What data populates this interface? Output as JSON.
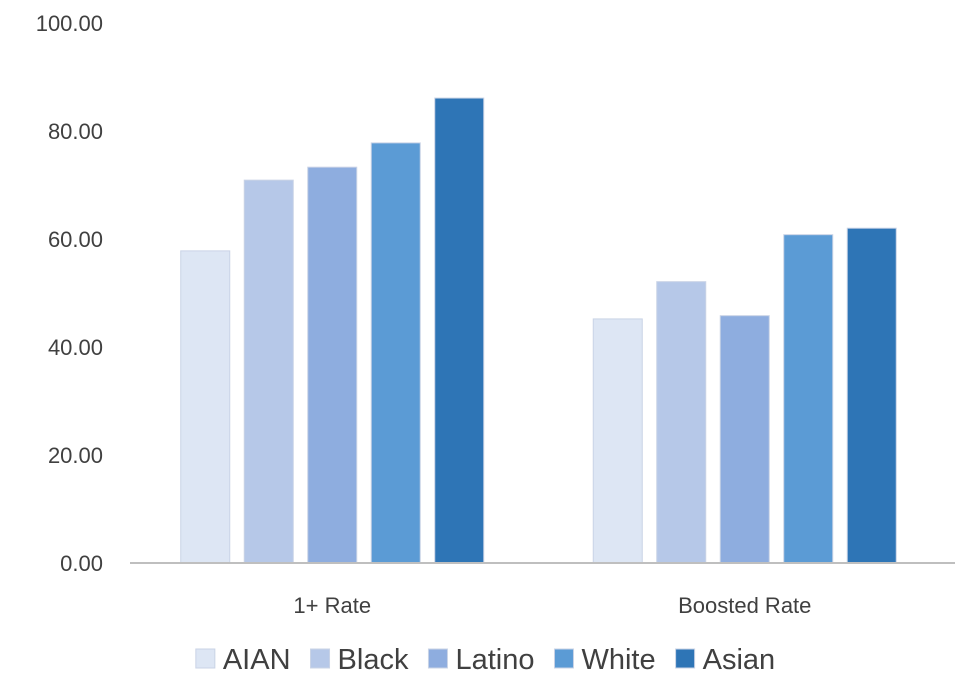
{
  "chart_data": {
    "type": "bar",
    "title": "",
    "xlabel": "",
    "ylabel": "",
    "categories": [
      "1+ Rate",
      "Boosted Rate"
    ],
    "series": [
      {
        "name": "AIAN",
        "values": [
          57.8,
          45.2
        ],
        "color": "#dde6f4"
      },
      {
        "name": "Black",
        "values": [
          70.9,
          52.1
        ],
        "color": "#b6c8e8"
      },
      {
        "name": "Latino",
        "values": [
          73.3,
          45.8
        ],
        "color": "#8eaddf"
      },
      {
        "name": "White",
        "values": [
          77.8,
          60.8
        ],
        "color": "#5b9bd5"
      },
      {
        "name": "Asian",
        "values": [
          86.1,
          62.0
        ],
        "color": "#2e75b6"
      }
    ],
    "ylim": [
      0,
      100
    ],
    "yticks": [
      0,
      20,
      40,
      60,
      80,
      100
    ],
    "ytick_labels": [
      "0.00",
      "20.00",
      "40.00",
      "60.00",
      "80.00",
      "100.00"
    ],
    "grid": false,
    "legend_position": "bottom"
  }
}
